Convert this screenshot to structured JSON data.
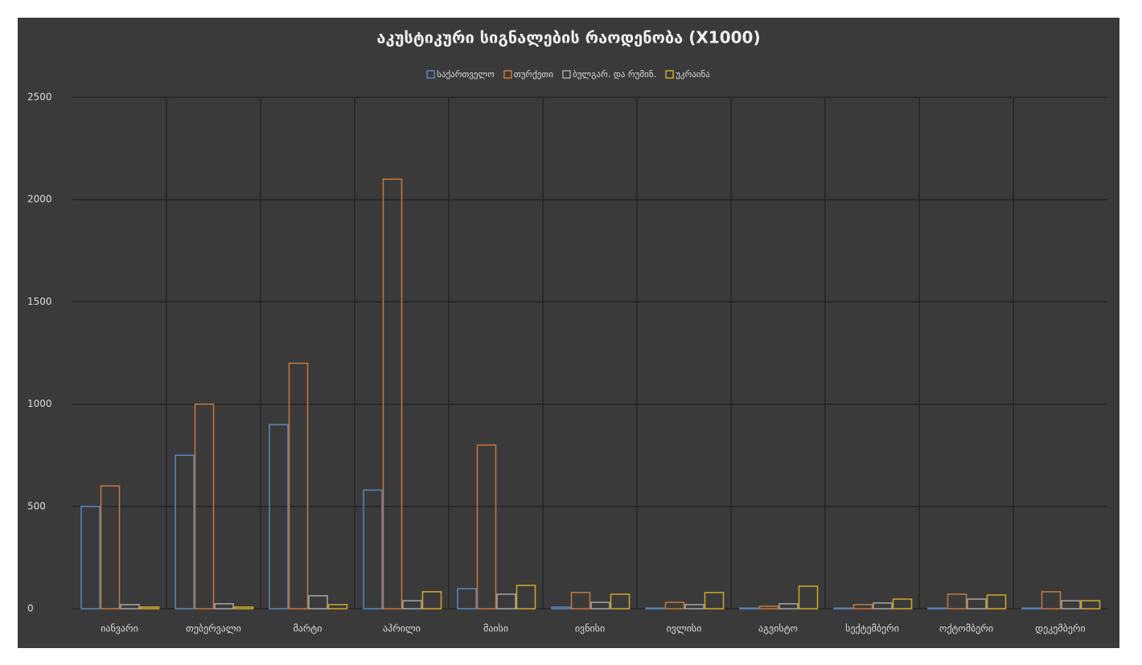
{
  "chart_data": {
    "type": "bar",
    "title": "აკუსტიკური სიგნალების რაოდენობა (X1000)",
    "categories": [
      "იანვარი",
      "თებერვალი",
      "მარტი",
      "აპრილი",
      "მაისი",
      "ივნისი",
      "ივლისი",
      "აგვისტო",
      "სექტემბერი",
      "ოქტომბერი",
      "დეკემბერი"
    ],
    "series": [
      {
        "name": "საქართველო",
        "color": "#5b86c0",
        "values": [
          500,
          750,
          900,
          580,
          98,
          8,
          3,
          3,
          3,
          3,
          3
        ]
      },
      {
        "name": "თურქეთი",
        "color": "#c8773d",
        "values": [
          600,
          1000,
          1200,
          2100,
          800,
          79,
          31,
          12,
          20,
          71,
          83
        ]
      },
      {
        "name": "ბულგარ. და რუმინ.",
        "color": "#a6a6a6",
        "values": [
          20,
          24,
          63,
          39,
          71,
          31,
          20,
          24,
          28,
          47,
          39
        ]
      },
      {
        "name": "უკრაინა",
        "color": "#d1a72a",
        "values": [
          8,
          8,
          20,
          83,
          114,
          71,
          79,
          110,
          47,
          67,
          39
        ]
      }
    ],
    "ylim": [
      0,
      2500
    ],
    "yticks": [
      0,
      500,
      1000,
      1500,
      2000,
      2500
    ],
    "grid": true,
    "legend": "top"
  }
}
